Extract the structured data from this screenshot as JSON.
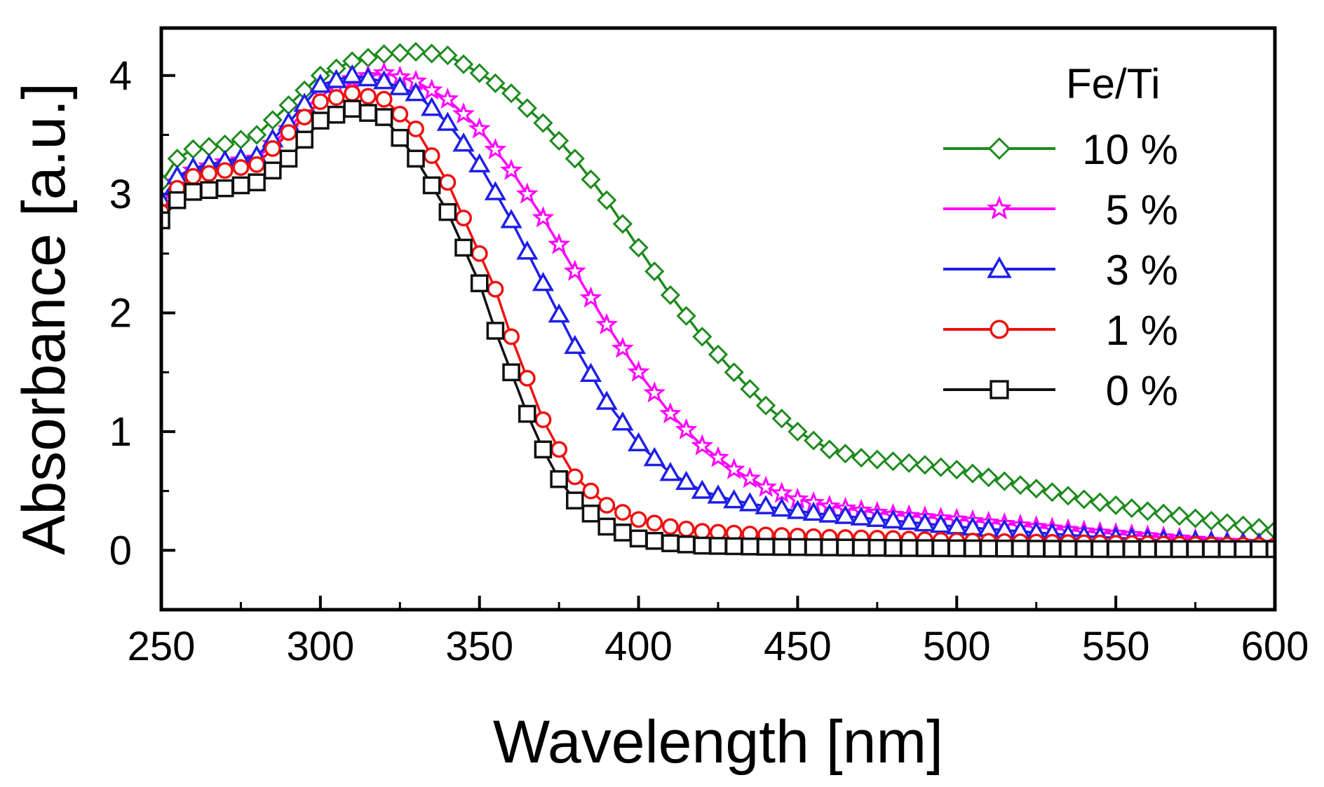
{
  "chart_data": {
    "type": "line",
    "title": "",
    "xlabel": "Wavelength [nm]",
    "ylabel": "Absorbance [a.u.]",
    "xlim": [
      250,
      600
    ],
    "ylim": [
      -0.5,
      4.4
    ],
    "xticks": [
      250,
      300,
      350,
      400,
      450,
      500,
      550,
      600
    ],
    "yticks": [
      0,
      1,
      2,
      3,
      4
    ],
    "xtick_labels": [
      "250",
      "300",
      "350",
      "400",
      "450",
      "500",
      "550",
      "600"
    ],
    "ytick_labels": [
      "0",
      "1",
      "2",
      "3",
      "4"
    ],
    "grid": false,
    "legend_position": "top-right",
    "legend_title": "Fe/Ti",
    "x": [
      250,
      300,
      310,
      320,
      330,
      340,
      350,
      360,
      370,
      380,
      390,
      400,
      420,
      440,
      460,
      480,
      500,
      550,
      600
    ],
    "series": [
      {
        "name": "10 %",
        "color": "#1e8a1e",
        "marker": "diamond",
        "points": [
          [
            250,
            3.1
          ],
          [
            255,
            3.3
          ],
          [
            260,
            3.38
          ],
          [
            270,
            3.42
          ],
          [
            280,
            3.5
          ],
          [
            290,
            3.75
          ],
          [
            300,
            4.0
          ],
          [
            310,
            4.12
          ],
          [
            320,
            4.18
          ],
          [
            330,
            4.2
          ],
          [
            340,
            4.17
          ],
          [
            350,
            4.02
          ],
          [
            360,
            3.85
          ],
          [
            370,
            3.6
          ],
          [
            380,
            3.3
          ],
          [
            390,
            2.95
          ],
          [
            400,
            2.55
          ],
          [
            410,
            2.15
          ],
          [
            420,
            1.8
          ],
          [
            430,
            1.5
          ],
          [
            440,
            1.22
          ],
          [
            450,
            1.0
          ],
          [
            460,
            0.85
          ],
          [
            470,
            0.78
          ],
          [
            480,
            0.75
          ],
          [
            490,
            0.72
          ],
          [
            500,
            0.68
          ],
          [
            520,
            0.55
          ],
          [
            540,
            0.43
          ],
          [
            560,
            0.33
          ],
          [
            580,
            0.25
          ],
          [
            600,
            0.17
          ]
        ]
      },
      {
        "name": "5 %",
        "color": "#ff00ff",
        "marker": "star",
        "points": [
          [
            250,
            2.9
          ],
          [
            255,
            3.1
          ],
          [
            260,
            3.2
          ],
          [
            270,
            3.27
          ],
          [
            280,
            3.3
          ],
          [
            290,
            3.55
          ],
          [
            300,
            3.85
          ],
          [
            310,
            3.97
          ],
          [
            320,
            4.02
          ],
          [
            330,
            3.95
          ],
          [
            340,
            3.8
          ],
          [
            350,
            3.55
          ],
          [
            360,
            3.2
          ],
          [
            370,
            2.8
          ],
          [
            380,
            2.35
          ],
          [
            390,
            1.9
          ],
          [
            400,
            1.5
          ],
          [
            410,
            1.15
          ],
          [
            420,
            0.88
          ],
          [
            430,
            0.68
          ],
          [
            440,
            0.53
          ],
          [
            450,
            0.43
          ],
          [
            460,
            0.37
          ],
          [
            480,
            0.3
          ],
          [
            500,
            0.26
          ],
          [
            520,
            0.21
          ],
          [
            540,
            0.16
          ],
          [
            560,
            0.12
          ],
          [
            580,
            0.08
          ],
          [
            600,
            0.05
          ]
        ]
      },
      {
        "name": "3 %",
        "color": "#1f1fe6",
        "marker": "triangle",
        "points": [
          [
            250,
            2.95
          ],
          [
            255,
            3.15
          ],
          [
            260,
            3.22
          ],
          [
            270,
            3.28
          ],
          [
            280,
            3.32
          ],
          [
            290,
            3.6
          ],
          [
            300,
            3.92
          ],
          [
            310,
            4.0
          ],
          [
            320,
            3.95
          ],
          [
            330,
            3.85
          ],
          [
            340,
            3.6
          ],
          [
            350,
            3.25
          ],
          [
            360,
            2.78
          ],
          [
            370,
            2.25
          ],
          [
            380,
            1.72
          ],
          [
            390,
            1.25
          ],
          [
            400,
            0.9
          ],
          [
            410,
            0.65
          ],
          [
            420,
            0.5
          ],
          [
            430,
            0.42
          ],
          [
            440,
            0.37
          ],
          [
            450,
            0.33
          ],
          [
            460,
            0.3
          ],
          [
            480,
            0.25
          ],
          [
            500,
            0.2
          ],
          [
            520,
            0.16
          ],
          [
            540,
            0.12
          ],
          [
            560,
            0.09
          ],
          [
            580,
            0.07
          ],
          [
            600,
            0.05
          ]
        ]
      },
      {
        "name": "1 %",
        "color": "#ee1111",
        "marker": "circle",
        "points": [
          [
            250,
            2.85
          ],
          [
            255,
            3.05
          ],
          [
            260,
            3.15
          ],
          [
            270,
            3.2
          ],
          [
            280,
            3.25
          ],
          [
            290,
            3.52
          ],
          [
            300,
            3.78
          ],
          [
            310,
            3.85
          ],
          [
            320,
            3.8
          ],
          [
            330,
            3.55
          ],
          [
            340,
            3.1
          ],
          [
            350,
            2.5
          ],
          [
            355,
            2.2
          ],
          [
            360,
            1.8
          ],
          [
            365,
            1.45
          ],
          [
            370,
            1.1
          ],
          [
            375,
            0.85
          ],
          [
            380,
            0.62
          ],
          [
            390,
            0.38
          ],
          [
            400,
            0.26
          ],
          [
            410,
            0.2
          ],
          [
            420,
            0.16
          ],
          [
            440,
            0.13
          ],
          [
            460,
            0.11
          ],
          [
            480,
            0.1
          ],
          [
            500,
            0.08
          ],
          [
            550,
            0.06
          ],
          [
            600,
            0.04
          ]
        ]
      },
      {
        "name": "0 %",
        "color": "#111111",
        "marker": "square",
        "points": [
          [
            250,
            2.78
          ],
          [
            255,
            2.95
          ],
          [
            260,
            3.02
          ],
          [
            270,
            3.05
          ],
          [
            280,
            3.1
          ],
          [
            290,
            3.3
          ],
          [
            300,
            3.62
          ],
          [
            310,
            3.72
          ],
          [
            320,
            3.65
          ],
          [
            330,
            3.3
          ],
          [
            340,
            2.85
          ],
          [
            350,
            2.25
          ],
          [
            355,
            1.85
          ],
          [
            360,
            1.5
          ],
          [
            365,
            1.15
          ],
          [
            370,
            0.85
          ],
          [
            375,
            0.6
          ],
          [
            380,
            0.42
          ],
          [
            390,
            0.2
          ],
          [
            400,
            0.1
          ],
          [
            410,
            0.06
          ],
          [
            420,
            0.04
          ],
          [
            440,
            0.03
          ],
          [
            480,
            0.02
          ],
          [
            550,
            0.01
          ],
          [
            600,
            0.01
          ]
        ]
      }
    ]
  }
}
